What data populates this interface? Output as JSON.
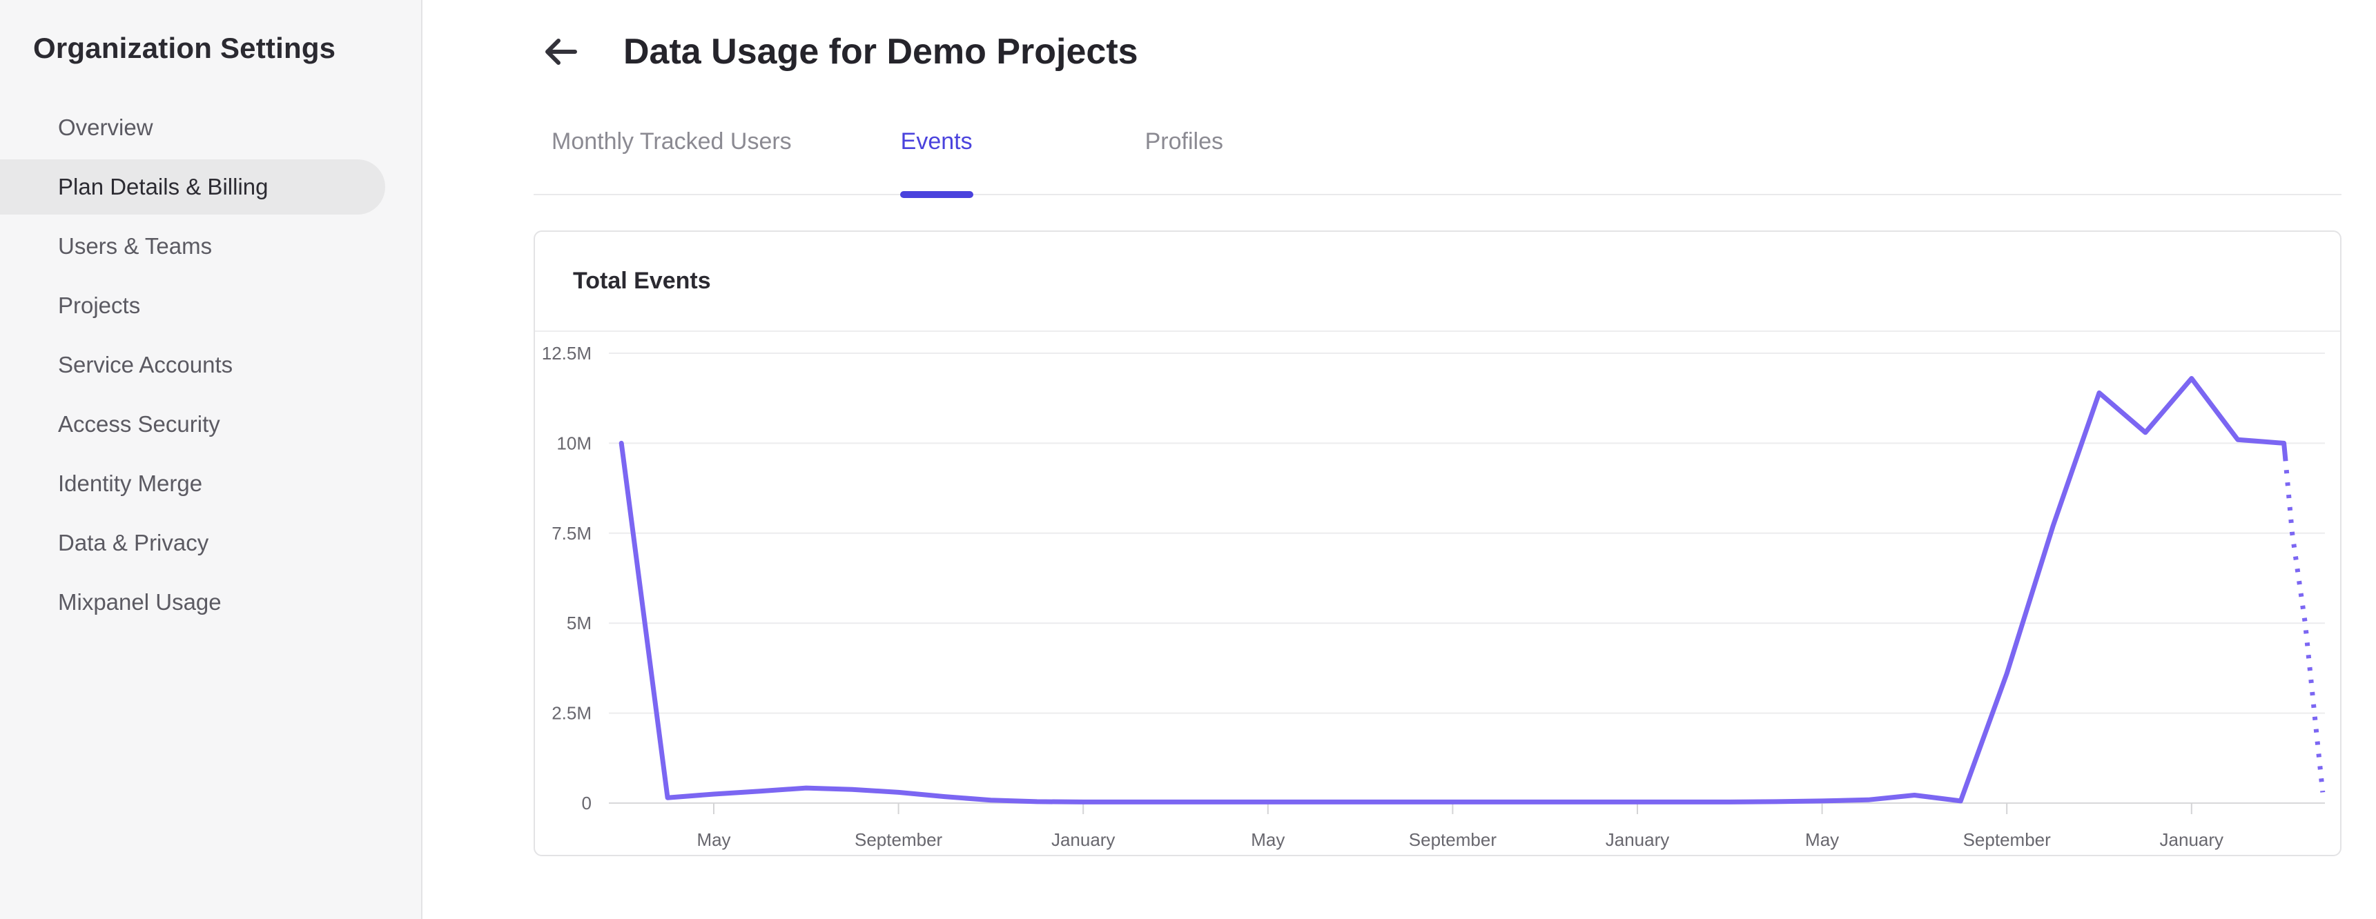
{
  "sidebar": {
    "title": "Organization Settings",
    "items": [
      {
        "label": "Overview",
        "active": false
      },
      {
        "label": "Plan Details & Billing",
        "active": true
      },
      {
        "label": "Users & Teams",
        "active": false
      },
      {
        "label": "Projects",
        "active": false
      },
      {
        "label": "Service Accounts",
        "active": false
      },
      {
        "label": "Access Security",
        "active": false
      },
      {
        "label": "Identity Merge",
        "active": false
      },
      {
        "label": "Data & Privacy",
        "active": false
      },
      {
        "label": "Mixpanel Usage",
        "active": false
      }
    ]
  },
  "header": {
    "back_icon": "left-arrow",
    "title": "Data Usage for Demo Projects"
  },
  "tabs": [
    {
      "label": "Monthly Tracked Users",
      "active": false
    },
    {
      "label": "Events",
      "active": true
    },
    {
      "label": "Profiles",
      "active": false
    }
  ],
  "card": {
    "title": "Total Events"
  },
  "colors": {
    "accent": "#4a42dd",
    "line": "#7b66f2",
    "sidebar_active_bg": "#e8e8e9",
    "tab_inactive": "#8b8a92",
    "axis_label": "#68676e",
    "grid": "#ececee",
    "baseline": "#d8d8da",
    "border": "#e3e3e5"
  },
  "chart_data": {
    "type": "line",
    "title": "Total Events",
    "ylabel": "",
    "xlabel": "",
    "ylim": [
      0,
      12500000
    ],
    "grid": "horizontal",
    "legend": "none",
    "y_ticks": [
      {
        "label": "12.5M",
        "value": 12500000
      },
      {
        "label": "10M",
        "value": 10000000
      },
      {
        "label": "7.5M",
        "value": 7500000
      },
      {
        "label": "5M",
        "value": 5000000
      },
      {
        "label": "2.5M",
        "value": 2500000
      },
      {
        "label": "0",
        "value": 0
      }
    ],
    "x_ticks": [
      {
        "label": "May",
        "month": 2
      },
      {
        "label": "September",
        "month": 6
      },
      {
        "label": "January",
        "month": 10
      },
      {
        "label": "May",
        "month": 14
      },
      {
        "label": "September",
        "month": 18
      },
      {
        "label": "January",
        "month": 22
      },
      {
        "label": "May",
        "month": 26
      },
      {
        "label": "September",
        "month": 30
      },
      {
        "label": "January",
        "month": 34
      }
    ],
    "series": [
      {
        "name": "Total Events",
        "color": "#7b66f2",
        "points": [
          [
            0,
            10000000
          ],
          [
            1,
            150000
          ],
          [
            2,
            250000
          ],
          [
            3,
            330000
          ],
          [
            4,
            420000
          ],
          [
            5,
            380000
          ],
          [
            6,
            300000
          ],
          [
            7,
            180000
          ],
          [
            8,
            80000
          ],
          [
            9,
            40000
          ],
          [
            10,
            30000
          ],
          [
            11,
            30000
          ],
          [
            12,
            30000
          ],
          [
            13,
            30000
          ],
          [
            14,
            30000
          ],
          [
            15,
            30000
          ],
          [
            16,
            30000
          ],
          [
            17,
            30000
          ],
          [
            18,
            30000
          ],
          [
            19,
            30000
          ],
          [
            20,
            30000
          ],
          [
            21,
            30000
          ],
          [
            22,
            30000
          ],
          [
            23,
            30000
          ],
          [
            24,
            30000
          ],
          [
            25,
            40000
          ],
          [
            26,
            60000
          ],
          [
            27,
            90000
          ],
          [
            28,
            220000
          ],
          [
            29,
            60000
          ],
          [
            30,
            3600000
          ],
          [
            31,
            7700000
          ],
          [
            32,
            11400000
          ],
          [
            33,
            10300000
          ],
          [
            34,
            11800000
          ],
          [
            35,
            10100000
          ],
          [
            36,
            10000000
          ],
          [
            36.03,
            9600000
          ]
        ],
        "projected_dotted_points": [
          [
            36.03,
            9600000
          ],
          [
            36.18,
            7500000
          ],
          [
            36.46,
            5000000
          ],
          [
            36.66,
            2500000
          ],
          [
            36.84,
            300000
          ]
        ]
      }
    ]
  }
}
